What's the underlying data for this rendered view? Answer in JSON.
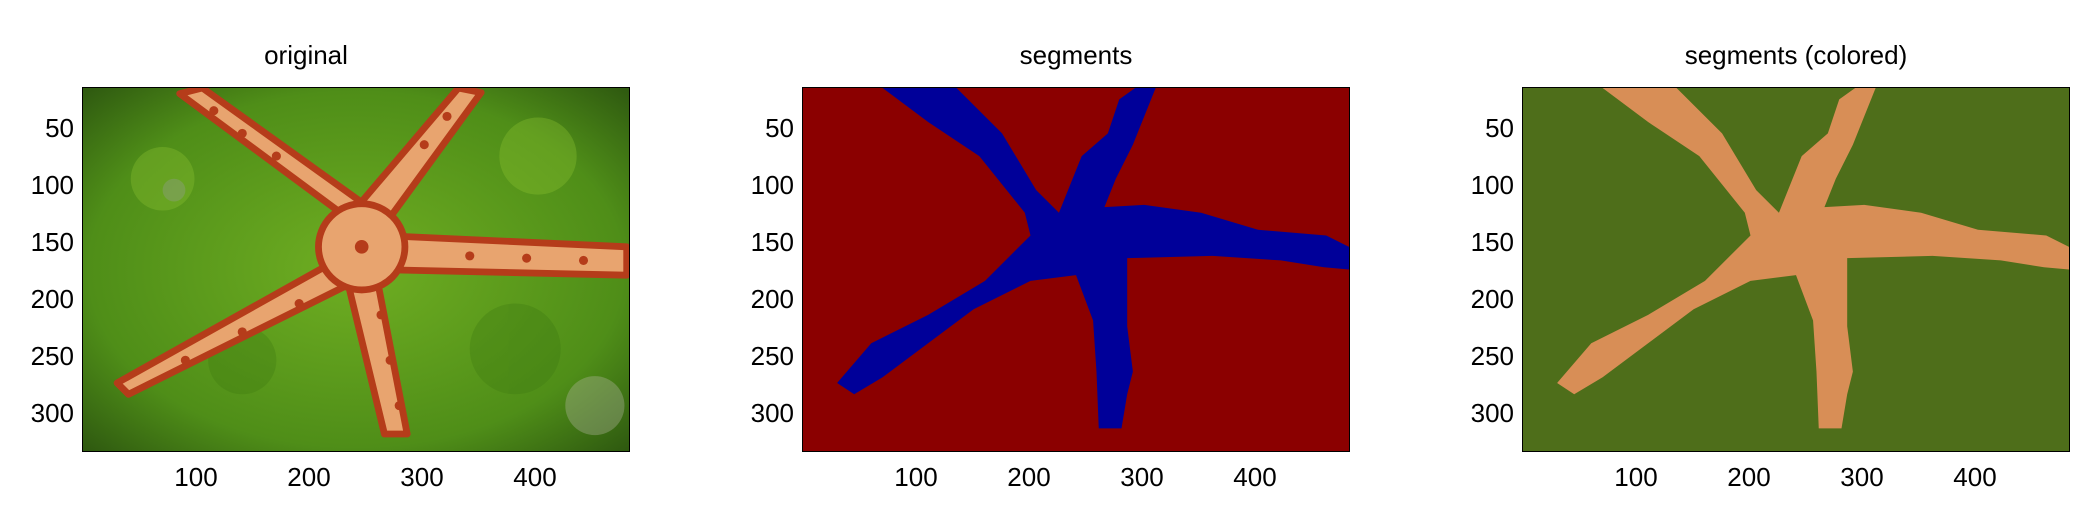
{
  "panels": [
    {
      "title": "original",
      "kind": "photo",
      "colors": {
        "background": "#5a9a1c",
        "star": "#e8a46f",
        "star_dark": "#b53c1a",
        "dots": "#f2c186"
      },
      "y_ticks": [
        "50",
        "100",
        "150",
        "200",
        "250",
        "300"
      ],
      "x_ticks": [
        "100",
        "200",
        "300",
        "400"
      ]
    },
    {
      "title": "segments",
      "kind": "segmentation",
      "colors": {
        "background": "#8b0000",
        "star": "#000099"
      },
      "y_ticks": [
        "50",
        "100",
        "150",
        "200",
        "250",
        "300"
      ],
      "x_ticks": [
        "100",
        "200",
        "300",
        "400"
      ]
    },
    {
      "title": "segments (colored)",
      "kind": "segmentation",
      "colors": {
        "background": "#4e6e1a",
        "star": "#d88e56"
      },
      "y_ticks": [
        "50",
        "100",
        "150",
        "200",
        "250",
        "300"
      ],
      "x_ticks": [
        "100",
        "200",
        "300",
        "400"
      ]
    }
  ]
}
